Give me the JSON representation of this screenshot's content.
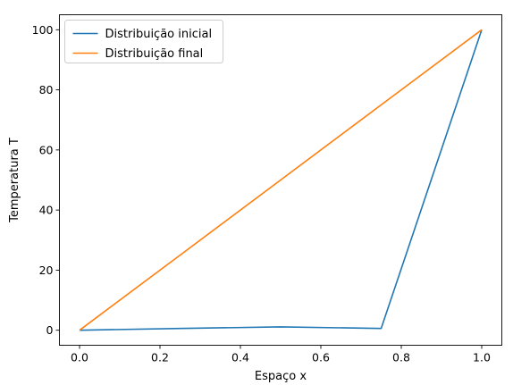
{
  "chart_data": {
    "type": "line",
    "title": "",
    "xlabel": "Espaço x",
    "ylabel": "Temperatura T",
    "xlim": [
      -0.05,
      1.05
    ],
    "ylim": [
      -5,
      105
    ],
    "xticks": [
      0.0,
      0.2,
      0.4,
      0.6,
      0.8,
      1.0
    ],
    "xtick_labels": [
      "0.0",
      "0.2",
      "0.4",
      "0.6",
      "0.8",
      "1.0"
    ],
    "yticks": [
      0,
      20,
      40,
      60,
      80,
      100
    ],
    "ytick_labels": [
      "0",
      "20",
      "40",
      "60",
      "80",
      "100"
    ],
    "grid": false,
    "legend_position": "top-left",
    "series": [
      {
        "name": "Distribuição inicial",
        "color": "#1f77b4",
        "x": [
          0.0,
          0.25,
          0.5,
          0.75,
          1.0
        ],
        "y": [
          0,
          0.6,
          1.1,
          0.6,
          100
        ]
      },
      {
        "name": "Distribuição final",
        "color": "#ff7f0e",
        "x": [
          0.0,
          0.25,
          0.5,
          0.75,
          1.0
        ],
        "y": [
          0,
          25,
          50,
          75,
          100
        ]
      }
    ]
  }
}
